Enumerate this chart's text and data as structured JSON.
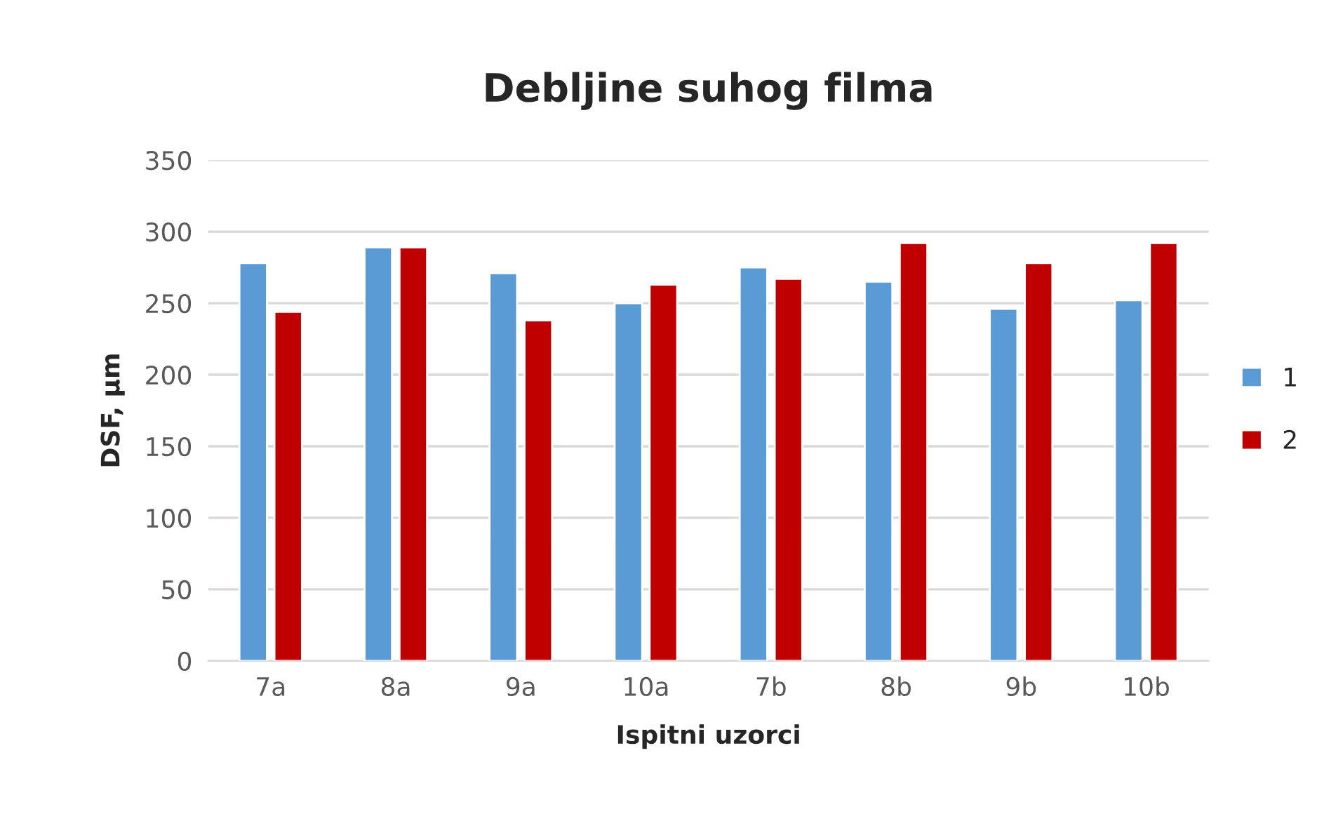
{
  "chart_data": {
    "type": "bar",
    "title": "Debljine suhog filma",
    "xlabel": "Ispitni uzorci",
    "ylabel": "DSF, µm",
    "categories": [
      "7a",
      "8a",
      "9a",
      "10a",
      "7b",
      "8b",
      "9b",
      "10b"
    ],
    "series": [
      {
        "name": "1",
        "color": "#5b9bd5",
        "values": [
          278,
          289,
          271,
          250,
          275,
          265,
          246,
          252
        ]
      },
      {
        "name": "2",
        "color": "#c00000",
        "values": [
          244,
          289,
          238,
          263,
          267,
          292,
          278,
          292
        ]
      }
    ],
    "ylim": [
      0,
      350
    ],
    "yticks": [
      0,
      50,
      100,
      150,
      200,
      250,
      300,
      350
    ],
    "grid": "y",
    "legend": "right"
  }
}
